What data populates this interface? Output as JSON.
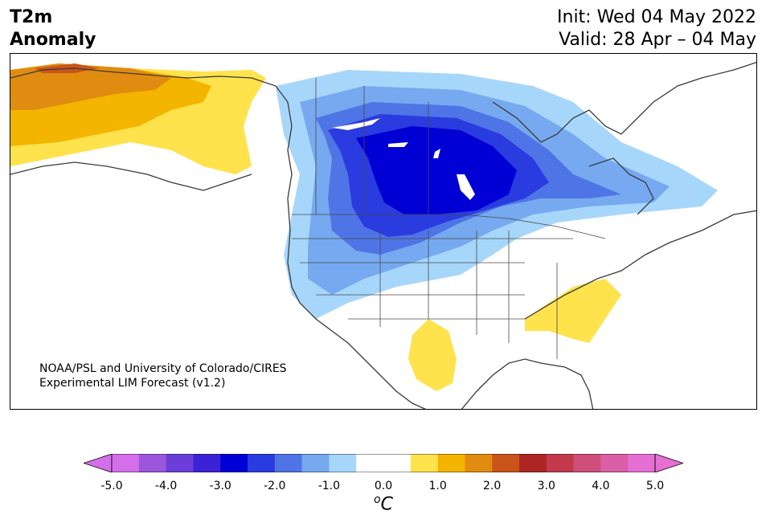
{
  "title": {
    "variable": "T2m",
    "kind": "Anomaly",
    "init": "Init: Wed 04 May 2022",
    "valid": "Valid: 28 Apr – 04 May"
  },
  "credit": {
    "line1": "NOAA/PSL and University of Colorado/CIRES",
    "line2": "Experimental LIM Forecast (v1.2)"
  },
  "colorbar": {
    "unit_base": "o",
    "unit": "C",
    "ticks": [
      "-5.0",
      "-4.0",
      "-3.0",
      "-2.0",
      "-1.0",
      "0.0",
      "1.0",
      "2.0",
      "3.0",
      "4.0",
      "5.0"
    ],
    "colors": [
      "#d46ee9",
      "#9b56dc",
      "#6c3ed9",
      "#3c22d6",
      "#0000d4",
      "#2a3bdf",
      "#4f74e6",
      "#76a9ef",
      "#a7d6fb",
      "#ffffff",
      "#ffffff",
      "#ffe24c",
      "#f4b500",
      "#e08c10",
      "#c9551a",
      "#ad2525",
      "#c23a4b",
      "#cf4f7a",
      "#da5fa6",
      "#e56fd2"
    ],
    "under_color": "#d46ee9",
    "over_color": "#e56fd2"
  }
}
